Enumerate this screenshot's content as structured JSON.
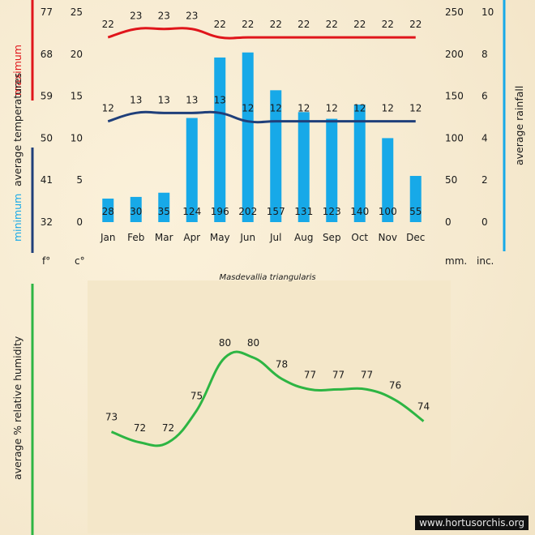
{
  "species": "Masdevallia triangularis",
  "watermark": "www.hortusorchis.org",
  "colors": {
    "maximum": "#e0151b",
    "minimum": "#1f3f7a",
    "rainfall": "#17a9e8",
    "humidity": "#2db543"
  },
  "labels": {
    "maximum": "maximum",
    "average_temperatures": "average  temperatures",
    "minimum": "minimum",
    "average_rainfall": "average rainfall",
    "fahrenheit": "f°",
    "celsius": "c°",
    "mm": "mm.",
    "inches": "inc.",
    "average_humidity": "average %  relative humidity"
  },
  "chart_data": [
    {
      "type": "bar+line",
      "title": "Masdevallia triangularis",
      "categories": [
        "Jan",
        "Feb",
        "Mar",
        "Apr",
        "May",
        "Jun",
        "Jul",
        "Aug",
        "Sep",
        "Oct",
        "Nov",
        "Dec"
      ],
      "series": [
        {
          "name": "maximum",
          "kind": "line",
          "axis": "celsius",
          "values": [
            22,
            23,
            23,
            23,
            22,
            22,
            22,
            22,
            22,
            22,
            22,
            22
          ]
        },
        {
          "name": "minimum",
          "kind": "line",
          "axis": "celsius",
          "values": [
            12,
            13,
            13,
            13,
            13,
            12,
            12,
            12,
            12,
            12,
            12,
            12
          ]
        },
        {
          "name": "average rainfall",
          "kind": "bar",
          "axis": "mm",
          "values": [
            28,
            30,
            35,
            124,
            196,
            202,
            157,
            131,
            123,
            140,
            100,
            55
          ]
        }
      ],
      "axes": {
        "fahrenheit": {
          "ticks": [
            32,
            41,
            50,
            59,
            68,
            77
          ]
        },
        "celsius": {
          "range": [
            0,
            25
          ],
          "ticks": [
            0,
            5,
            10,
            15,
            20,
            25
          ]
        },
        "mm": {
          "range": [
            0,
            250
          ],
          "ticks": [
            0,
            50,
            100,
            150,
            200,
            250
          ]
        },
        "inches": {
          "ticks": [
            0,
            2,
            4,
            6,
            8,
            10
          ]
        }
      }
    },
    {
      "type": "line",
      "categories": [
        "Jan",
        "Feb",
        "Mar",
        "Apr",
        "May",
        "Jun",
        "Jul",
        "Aug",
        "Sep",
        "Oct",
        "Nov",
        "Dec"
      ],
      "series": [
        {
          "name": "average % relative humidity",
          "values": [
            73,
            72,
            72,
            75,
            80,
            80,
            78,
            77,
            77,
            77,
            76,
            74
          ]
        }
      ],
      "ylim": [
        69,
        82
      ]
    }
  ]
}
